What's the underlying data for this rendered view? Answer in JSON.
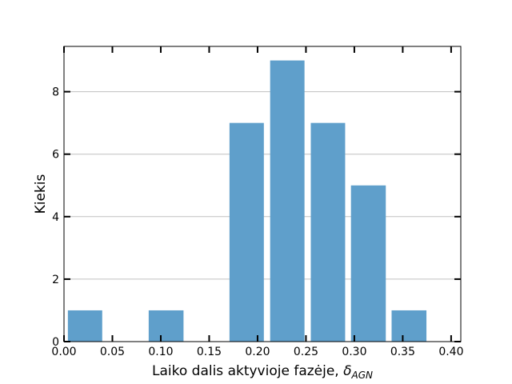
{
  "chart_data": {
    "type": "bar",
    "title": "",
    "xlabel": "Laiko dalis aktyvioje fazėje, ",
    "xlabel_symbol": "δ",
    "xlabel_subscript": "AGN",
    "ylabel": "Kiekis",
    "bar_color": "#5f9fcb",
    "grid": "horizontal",
    "xlim": [
      0.0,
      0.41
    ],
    "ylim": [
      0,
      9.45
    ],
    "xticks": [
      0.0,
      0.05,
      0.1,
      0.15,
      0.2,
      0.25,
      0.3,
      0.35,
      0.4
    ],
    "xtick_labels": [
      "0.00",
      "0.05",
      "0.10",
      "0.15",
      "0.20",
      "0.25",
      "0.30",
      "0.35",
      "0.40"
    ],
    "yticks": [
      0,
      2,
      4,
      6,
      8
    ],
    "ytick_labels": [
      "0",
      "2",
      "4",
      "6",
      "8"
    ],
    "bars": [
      {
        "x0": 0.004,
        "x1": 0.0395,
        "value": 1
      },
      {
        "x0": 0.0875,
        "x1": 0.1235,
        "value": 1
      },
      {
        "x0": 0.171,
        "x1": 0.2065,
        "value": 7
      },
      {
        "x0": 0.213,
        "x1": 0.2485,
        "value": 9
      },
      {
        "x0": 0.255,
        "x1": 0.2905,
        "value": 7
      },
      {
        "x0": 0.2965,
        "x1": 0.3325,
        "value": 5
      },
      {
        "x0": 0.3385,
        "x1": 0.3745,
        "value": 1
      }
    ]
  }
}
